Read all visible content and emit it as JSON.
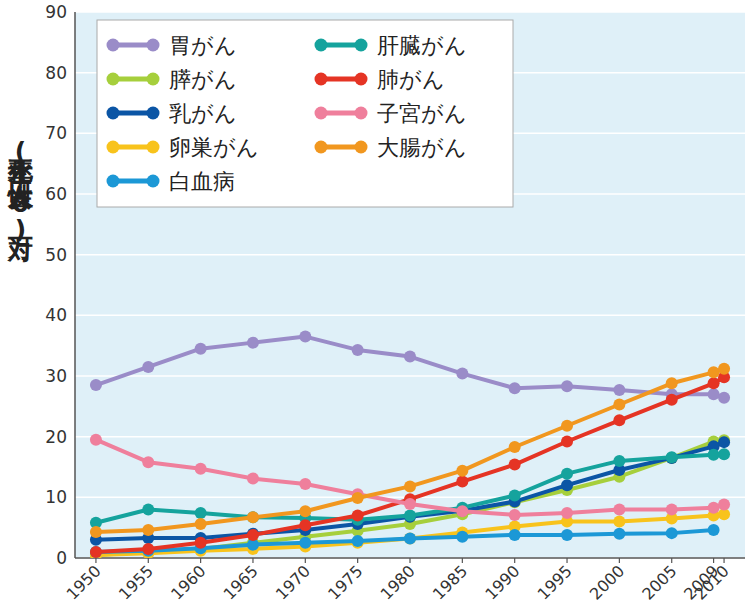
{
  "chart_data": {
    "type": "line",
    "y_label": "死亡率(女性人口10万対)",
    "x": [
      1950,
      1955,
      1960,
      1965,
      1970,
      1975,
      1980,
      1985,
      1990,
      1995,
      2000,
      2005,
      2009,
      2010
    ],
    "xlim": [
      1948,
      2012
    ],
    "xticks": [
      1950,
      1955,
      1960,
      1965,
      1970,
      1975,
      1980,
      1985,
      1990,
      1995,
      2000,
      2005,
      2009,
      2010
    ],
    "ylim": [
      0,
      90
    ],
    "yticks": [
      0,
      10,
      20,
      30,
      40,
      50,
      60,
      70,
      80,
      90
    ],
    "grid": true,
    "legend": "upper left",
    "marker": "circle",
    "series": [
      {
        "name": "胃がん",
        "color": "#9a8cc8",
        "values": [
          28.5,
          31.5,
          34.5,
          35.5,
          36.5,
          34.3,
          33.2,
          30.4,
          28.0,
          28.3,
          27.7,
          27.0,
          27.0,
          26.4
        ]
      },
      {
        "name": "膵がん",
        "color": "#a6cf3c",
        "values": [
          0.5,
          1.0,
          1.5,
          2.5,
          3.5,
          4.5,
          5.6,
          7.2,
          9.2,
          11.2,
          13.4,
          16.5,
          19.2,
          19.4
        ]
      },
      {
        "name": "乳がん",
        "color": "#0b55a5",
        "values": [
          3.0,
          3.3,
          3.3,
          4.0,
          4.6,
          5.6,
          6.8,
          7.8,
          9.3,
          12.0,
          14.5,
          16.5,
          18.4,
          19.1
        ]
      },
      {
        "name": "卵巣がん",
        "color": "#f8c31c",
        "values": [
          0.5,
          0.8,
          1.2,
          1.5,
          1.9,
          2.5,
          3.2,
          4.2,
          5.2,
          6.0,
          6.0,
          6.5,
          7.0,
          7.2
        ]
      },
      {
        "name": "白血病",
        "color": "#1c98d6",
        "values": [
          1.0,
          1.2,
          1.6,
          2.2,
          2.5,
          2.8,
          3.2,
          3.5,
          3.8,
          3.8,
          4.0,
          4.1,
          4.6,
          null
        ]
      },
      {
        "name": "肝臓がん",
        "color": "#15a39d",
        "values": [
          5.8,
          8.0,
          7.4,
          6.7,
          6.6,
          6.3,
          7.0,
          8.3,
          10.3,
          13.9,
          16.0,
          16.6,
          17.0,
          17.1
        ]
      },
      {
        "name": "肺がん",
        "color": "#e53424",
        "values": [
          1.0,
          1.5,
          2.5,
          3.8,
          5.4,
          7.0,
          9.7,
          12.6,
          15.4,
          19.2,
          22.7,
          26.1,
          28.8,
          29.8
        ]
      },
      {
        "name": "子宮がん",
        "color": "#ef7f9c",
        "values": [
          19.5,
          15.8,
          14.7,
          13.1,
          12.2,
          10.5,
          8.9,
          7.7,
          7.1,
          7.4,
          8.0,
          8.0,
          8.3,
          8.8
        ]
      },
      {
        "name": "大腸がん",
        "color": "#f1971f",
        "values": [
          4.3,
          4.6,
          5.6,
          6.7,
          7.7,
          9.9,
          11.8,
          14.4,
          18.3,
          21.8,
          25.3,
          28.8,
          30.6,
          31.2
        ]
      }
    ]
  }
}
